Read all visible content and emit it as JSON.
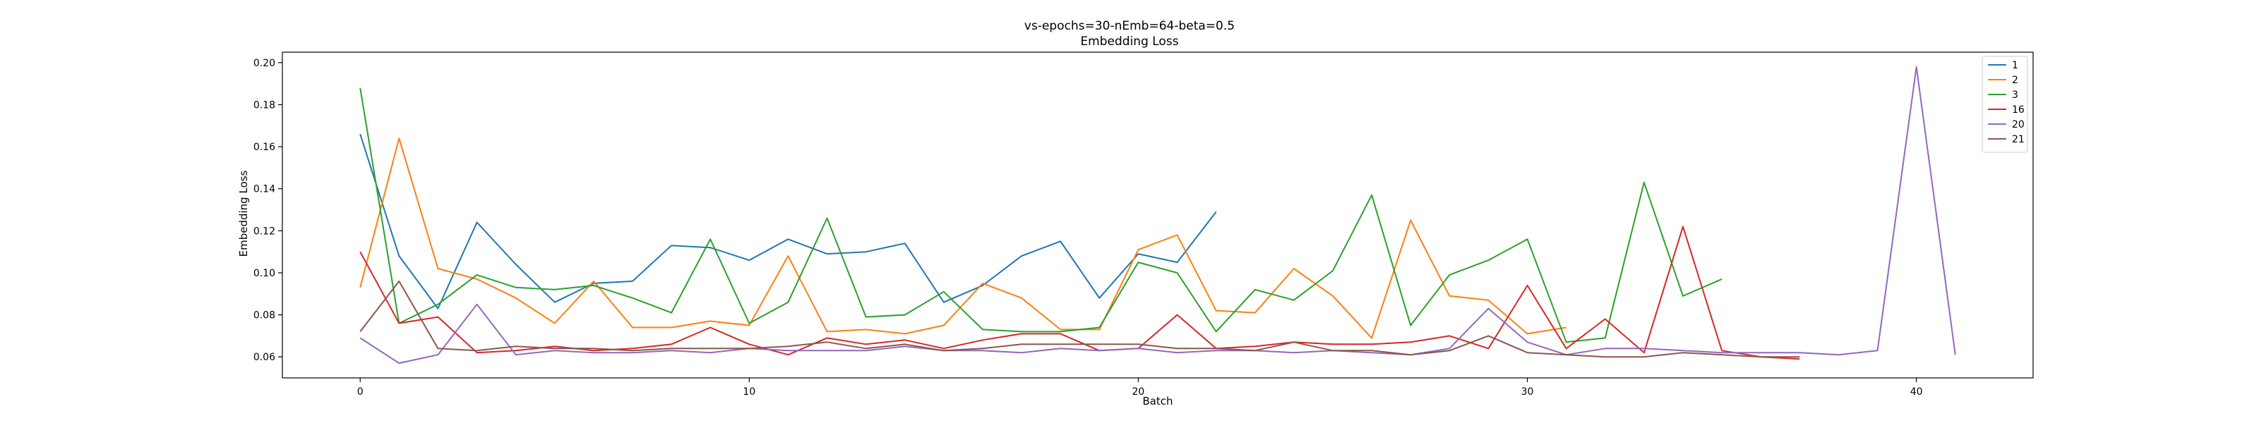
{
  "chart_data": {
    "type": "line",
    "title": "vs-epochs=30-nEmb=64-beta=0.5",
    "subtitle": "Embedding Loss",
    "xlabel": "Batch",
    "ylabel": "Embedding Loss",
    "xlim": [
      -2,
      43
    ],
    "ylim": [
      0.05,
      0.205
    ],
    "xticks": [
      0,
      10,
      20,
      30,
      40
    ],
    "yticks": [
      0.06,
      0.08,
      0.1,
      0.12,
      0.14,
      0.16,
      0.18,
      0.2
    ],
    "ytick_labels": [
      "0.06",
      "0.08",
      "0.10",
      "0.12",
      "0.14",
      "0.16",
      "0.18",
      "0.20"
    ],
    "grid": false,
    "legend_position": "top-right",
    "series": [
      {
        "name": "1",
        "color": "#1f77b4",
        "values": [
          0.166,
          0.108,
          0.083,
          0.124,
          0.104,
          0.086,
          0.095,
          0.096,
          0.113,
          0.112,
          0.106,
          0.116,
          0.109,
          0.11,
          0.114,
          0.086,
          0.094,
          0.108,
          0.115,
          0.088,
          0.109,
          0.105,
          0.129
        ]
      },
      {
        "name": "2",
        "color": "#ff7f0e",
        "values": [
          0.093,
          0.164,
          0.102,
          0.097,
          0.088,
          0.076,
          0.096,
          0.074,
          0.074,
          0.077,
          0.075,
          0.108,
          0.072,
          0.073,
          0.071,
          0.075,
          0.095,
          0.088,
          0.073,
          0.073,
          0.111,
          0.118,
          0.082,
          0.081,
          0.102,
          0.089,
          0.069,
          0.125,
          0.089,
          0.087,
          0.071,
          0.074
        ]
      },
      {
        "name": "3",
        "color": "#2ca02c",
        "values": [
          0.188,
          0.076,
          0.085,
          0.099,
          0.093,
          0.092,
          0.094,
          0.088,
          0.081,
          0.116,
          0.076,
          0.086,
          0.126,
          0.079,
          0.08,
          0.091,
          0.073,
          0.072,
          0.072,
          0.074,
          0.105,
          0.1,
          0.072,
          0.092,
          0.087,
          0.101,
          0.137,
          0.075,
          0.099,
          0.106,
          0.116,
          0.067,
          0.069,
          0.143,
          0.089,
          0.097
        ]
      },
      {
        "name": "16",
        "color": "#d62728",
        "values": [
          0.11,
          0.076,
          0.079,
          0.062,
          0.063,
          0.065,
          0.063,
          0.064,
          0.066,
          0.074,
          0.066,
          0.061,
          0.069,
          0.066,
          0.068,
          0.064,
          0.068,
          0.071,
          0.071,
          0.063,
          0.064,
          0.08,
          0.064,
          0.065,
          0.067,
          0.066,
          0.066,
          0.067,
          0.07,
          0.064,
          0.094,
          0.064,
          0.078,
          0.062,
          0.122,
          0.063,
          0.06,
          0.059
        ]
      },
      {
        "name": "20",
        "color": "#9467bd",
        "values": [
          0.069,
          0.057,
          0.061,
          0.085,
          0.061,
          0.063,
          0.062,
          0.062,
          0.063,
          0.062,
          0.064,
          0.063,
          0.063,
          0.063,
          0.065,
          0.063,
          0.063,
          0.062,
          0.064,
          0.063,
          0.064,
          0.062,
          0.063,
          0.063,
          0.062,
          0.063,
          0.062,
          0.061,
          0.064,
          0.083,
          0.067,
          0.061,
          0.064,
          0.064,
          0.063,
          0.062,
          0.062,
          0.062,
          0.061,
          0.063,
          0.198,
          0.061
        ]
      },
      {
        "name": "21",
        "color": "#8c564b",
        "values": [
          0.072,
          0.096,
          0.064,
          0.063,
          0.065,
          0.064,
          0.064,
          0.063,
          0.064,
          0.064,
          0.064,
          0.065,
          0.067,
          0.064,
          0.066,
          0.063,
          0.064,
          0.066,
          0.066,
          0.066,
          0.066,
          0.064,
          0.064,
          0.063,
          0.067,
          0.063,
          0.063,
          0.061,
          0.063,
          0.07,
          0.062,
          0.061,
          0.06,
          0.06,
          0.062,
          0.061,
          0.06,
          0.06
        ]
      }
    ]
  }
}
